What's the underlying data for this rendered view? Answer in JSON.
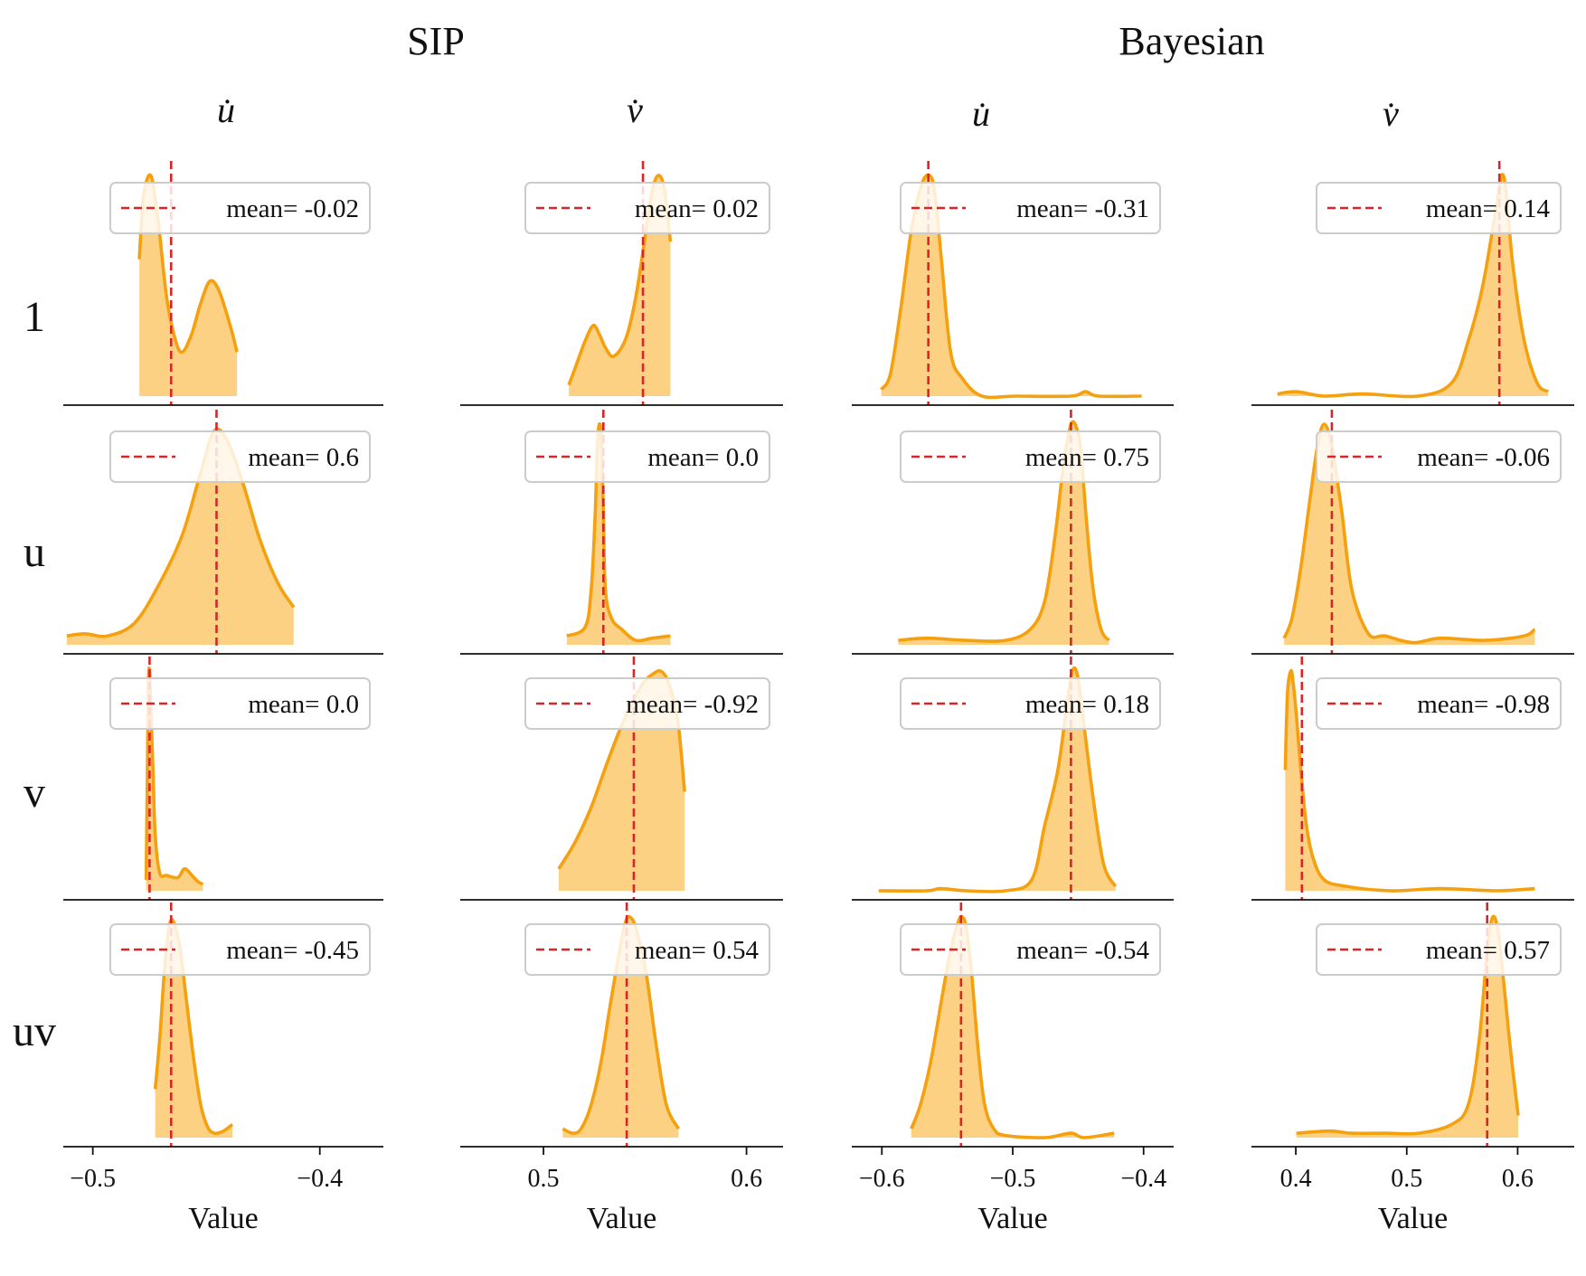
{
  "figure": {
    "group_titles": [
      "SIP",
      "Bayesian"
    ],
    "column_titles": [
      "u̇",
      "v̇",
      "u̇",
      "v̇"
    ],
    "row_labels": [
      "1",
      "u",
      "v",
      "uv"
    ],
    "x_axis_label": "Value",
    "colors": {
      "fill": "#fdc96e",
      "line": "#f5a10f",
      "mean_line": "#d62728",
      "axis": "#111111",
      "legend_border": "#cccccc"
    }
  },
  "chart_data": [
    {
      "type": "area",
      "title": "SIP",
      "columns": [
        {
          "name": "u̇",
          "xlabel": "Value",
          "xlim": [
            -0.513,
            -0.372
          ],
          "xticks": [
            -0.5,
            -0.4
          ],
          "xtick_labels": [
            "−0.5",
            "−0.4"
          ]
        },
        {
          "name": "v̇",
          "xlabel": "Value",
          "xlim": [
            0.459,
            0.618
          ],
          "xticks": [
            0.5,
            0.6
          ],
          "xtick_labels": [
            "0.5",
            "0.6"
          ]
        }
      ],
      "panels": [
        {
          "row": "1",
          "column": "u̇",
          "mean_label": "mean= -0.02",
          "mean_x": -0.4655,
          "x": [
            -0.4795,
            -0.4788,
            -0.4775,
            -0.4745,
            -0.4715,
            -0.4675,
            -0.4635,
            -0.4605,
            -0.4565,
            -0.4525,
            -0.4485,
            -0.4445,
            -0.4395,
            -0.4365
          ],
          "y": [
            0.62,
            0.75,
            0.92,
            1.0,
            0.82,
            0.45,
            0.25,
            0.2,
            0.28,
            0.42,
            0.52,
            0.48,
            0.32,
            0.2
          ]
        },
        {
          "row": "1",
          "column": "v̇",
          "mean_label": "mean= 0.02",
          "mean_x": 0.549,
          "x": [
            0.5125,
            0.5165,
            0.5205,
            0.5245,
            0.5275,
            0.5305,
            0.5345,
            0.5405,
            0.5455,
            0.5505,
            0.5535,
            0.5565,
            0.5595,
            0.5625
          ],
          "y": [
            0.05,
            0.15,
            0.25,
            0.32,
            0.28,
            0.22,
            0.18,
            0.26,
            0.45,
            0.75,
            0.93,
            1.0,
            0.94,
            0.7
          ]
        },
        {
          "row": "u",
          "column": "u̇",
          "mean_label": "mean= 0.6",
          "mean_x": -0.4455,
          "x": [
            -0.5115,
            -0.5035,
            -0.4935,
            -0.4815,
            -0.4705,
            -0.4605,
            -0.4525,
            -0.4465,
            -0.4405,
            -0.4335,
            -0.4265,
            -0.4185,
            -0.4115
          ],
          "y": [
            0.04,
            0.05,
            0.04,
            0.1,
            0.28,
            0.5,
            0.78,
            0.97,
            0.92,
            0.72,
            0.48,
            0.28,
            0.17
          ]
        },
        {
          "row": "u",
          "column": "v̇",
          "mean_label": "mean= 0.0",
          "mean_x": 0.5295,
          "x": [
            0.5115,
            0.5205,
            0.5235,
            0.5255,
            0.5265,
            0.5275,
            0.5285,
            0.5295,
            0.5305,
            0.5335,
            0.5385,
            0.5455,
            0.5535,
            0.5625
          ],
          "y": [
            0.04,
            0.08,
            0.25,
            0.6,
            0.9,
            1.0,
            0.93,
            0.6,
            0.25,
            0.12,
            0.07,
            0.02,
            0.03,
            0.04
          ]
        },
        {
          "row": "v",
          "column": "u̇",
          "mean_label": "mean= 0.0",
          "mean_x": -0.475,
          "x": [
            -0.4765,
            -0.476,
            -0.4755,
            -0.475,
            -0.4745,
            -0.4735,
            -0.4725,
            -0.4705,
            -0.4675,
            -0.4625,
            -0.4595,
            -0.4555,
            -0.4535,
            -0.4515
          ],
          "y": [
            0.05,
            0.5,
            0.95,
            1.0,
            0.85,
            0.55,
            0.25,
            0.08,
            0.07,
            0.06,
            0.1,
            0.06,
            0.04,
            0.03
          ]
        },
        {
          "row": "v",
          "column": "v̇",
          "mean_label": "mean= -0.92",
          "mean_x": 0.5445,
          "x": [
            0.5075,
            0.5155,
            0.5235,
            0.5305,
            0.5375,
            0.5445,
            0.5495,
            0.5545,
            0.5575,
            0.5605,
            0.5635,
            0.5665,
            0.5695
          ],
          "y": [
            0.1,
            0.22,
            0.38,
            0.56,
            0.73,
            0.87,
            0.95,
            0.99,
            1.0,
            0.97,
            0.89,
            0.75,
            0.45
          ]
        },
        {
          "row": "uv",
          "column": "u̇",
          "mean_label": "mean= -0.45",
          "mean_x": -0.4655,
          "x": [
            -0.4725,
            -0.4705,
            -0.4685,
            -0.4665,
            -0.4645,
            -0.4615,
            -0.4585,
            -0.4555,
            -0.4525,
            -0.4495,
            -0.4465,
            -0.4425,
            -0.4385
          ],
          "y": [
            0.22,
            0.45,
            0.75,
            0.95,
            0.98,
            0.85,
            0.6,
            0.35,
            0.15,
            0.05,
            0.02,
            0.03,
            0.06
          ]
        },
        {
          "row": "uv",
          "column": "v̇",
          "mean_label": "mean= 0.54",
          "mean_x": 0.541,
          "x": [
            0.5095,
            0.5145,
            0.5185,
            0.5235,
            0.5285,
            0.5325,
            0.5375,
            0.5405,
            0.5425,
            0.5455,
            0.5505,
            0.5555,
            0.5605,
            0.5665
          ],
          "y": [
            0.04,
            0.02,
            0.04,
            0.15,
            0.35,
            0.58,
            0.85,
            0.98,
            1.0,
            0.95,
            0.75,
            0.42,
            0.15,
            0.04
          ]
        }
      ]
    },
    {
      "type": "area",
      "title": "Bayesian",
      "columns": [
        {
          "name": "u̇",
          "xlabel": "Value",
          "xlim": [
            -0.623,
            -0.377
          ],
          "xticks": [
            -0.6,
            -0.5,
            -0.4
          ],
          "xtick_labels": [
            "−0.6",
            "−0.5",
            "−0.4"
          ]
        },
        {
          "name": "v̇",
          "xlabel": "Value",
          "xlim": [
            0.36,
            0.651
          ],
          "xticks": [
            0.4,
            0.5,
            0.6
          ],
          "xtick_labels": [
            "0.4",
            "0.5",
            "0.6"
          ]
        }
      ],
      "panels": [
        {
          "row": "1",
          "column": "u̇",
          "mean_label": "mean= -0.31",
          "mean_x": -0.5645,
          "x": [
            -0.6005,
            -0.5935,
            -0.5855,
            -0.5775,
            -0.5695,
            -0.5635,
            -0.5595,
            -0.5545,
            -0.5475,
            -0.5385,
            -0.5235,
            -0.4975,
            -0.4555,
            -0.4445,
            -0.4345,
            -0.4015
          ],
          "y": [
            0.03,
            0.1,
            0.4,
            0.75,
            0.96,
            1.0,
            0.92,
            0.62,
            0.2,
            0.08,
            0.0,
            0.0,
            0.0,
            0.02,
            0.0,
            0.0
          ]
        },
        {
          "row": "1",
          "column": "v̇",
          "mean_label": "mean= 0.14",
          "mean_x": 0.5835,
          "x": [
            0.3835,
            0.4005,
            0.4255,
            0.4605,
            0.5105,
            0.5405,
            0.5555,
            0.5685,
            0.5805,
            0.5855,
            0.5895,
            0.5955,
            0.6055,
            0.6175,
            0.6275
          ],
          "y": [
            0.01,
            0.02,
            0.0,
            0.01,
            0.0,
            0.06,
            0.25,
            0.5,
            0.85,
            1.0,
            0.93,
            0.6,
            0.26,
            0.06,
            0.02
          ]
        },
        {
          "row": "u",
          "column": "u̇",
          "mean_label": "mean= 0.75",
          "mean_x": -0.4555,
          "x": [
            -0.5875,
            -0.5655,
            -0.5355,
            -0.5055,
            -0.4865,
            -0.4755,
            -0.4675,
            -0.4615,
            -0.4555,
            -0.4505,
            -0.4475,
            -0.4435,
            -0.4385,
            -0.4325,
            -0.4265
          ],
          "y": [
            0.02,
            0.03,
            0.02,
            0.02,
            0.07,
            0.2,
            0.5,
            0.8,
            1.0,
            0.97,
            0.85,
            0.55,
            0.25,
            0.07,
            0.02
          ]
        },
        {
          "row": "u",
          "column": "v̇",
          "mean_label": "mean= -0.06",
          "mean_x": 0.4325,
          "x": [
            0.3895,
            0.3965,
            0.4045,
            0.4125,
            0.4195,
            0.4255,
            0.4325,
            0.4415,
            0.4505,
            0.4655,
            0.4805,
            0.5055,
            0.5305,
            0.5705,
            0.6055,
            0.6155
          ],
          "y": [
            0.03,
            0.12,
            0.35,
            0.65,
            0.9,
            1.0,
            0.9,
            0.6,
            0.25,
            0.05,
            0.04,
            0.01,
            0.03,
            0.02,
            0.04,
            0.07
          ]
        },
        {
          "row": "v",
          "column": "u̇",
          "mean_label": "mean= 0.18",
          "mean_x": -0.4555,
          "x": [
            -0.6025,
            -0.5655,
            -0.5555,
            -0.5355,
            -0.5055,
            -0.4855,
            -0.4755,
            -0.4655,
            -0.4585,
            -0.4545,
            -0.4505,
            -0.4455,
            -0.4385,
            -0.4305,
            -0.4215
          ],
          "y": [
            0.0,
            0.0,
            0.01,
            0.0,
            0.0,
            0.05,
            0.3,
            0.55,
            0.85,
            1.0,
            0.98,
            0.75,
            0.42,
            0.12,
            0.02
          ]
        },
        {
          "row": "v",
          "column": "v̇",
          "mean_label": "mean= -0.98",
          "mean_x": 0.4055,
          "x": [
            0.3905,
            0.3925,
            0.3955,
            0.3975,
            0.4005,
            0.4045,
            0.4095,
            0.4155,
            0.4255,
            0.4455,
            0.4855,
            0.5305,
            0.5805,
            0.6155
          ],
          "y": [
            0.55,
            0.9,
            1.0,
            0.95,
            0.8,
            0.55,
            0.3,
            0.15,
            0.05,
            0.02,
            0.0,
            0.01,
            0.0,
            0.01
          ]
        },
        {
          "row": "uv",
          "column": "u̇",
          "mean_label": "mean= -0.54",
          "mean_x": -0.5395,
          "x": [
            -0.5775,
            -0.5705,
            -0.5625,
            -0.5545,
            -0.5475,
            -0.5415,
            -0.5385,
            -0.5355,
            -0.5315,
            -0.5265,
            -0.5215,
            -0.5145,
            -0.5055,
            -0.4755,
            -0.4555,
            -0.4455,
            -0.4225
          ],
          "y": [
            0.04,
            0.15,
            0.35,
            0.62,
            0.85,
            0.98,
            1.0,
            0.95,
            0.75,
            0.4,
            0.15,
            0.04,
            0.01,
            0.0,
            0.02,
            0.0,
            0.02
          ]
        },
        {
          "row": "uv",
          "column": "v̇",
          "mean_label": "mean= 0.57",
          "mean_x": 0.5725,
          "x": [
            0.4005,
            0.4305,
            0.4505,
            0.4805,
            0.5105,
            0.5405,
            0.5555,
            0.5655,
            0.5725,
            0.5775,
            0.5825,
            0.5875,
            0.5935,
            0.6005
          ],
          "y": [
            0.02,
            0.03,
            0.02,
            0.02,
            0.02,
            0.06,
            0.15,
            0.45,
            0.85,
            1.0,
            0.93,
            0.7,
            0.4,
            0.1
          ]
        }
      ]
    }
  ]
}
